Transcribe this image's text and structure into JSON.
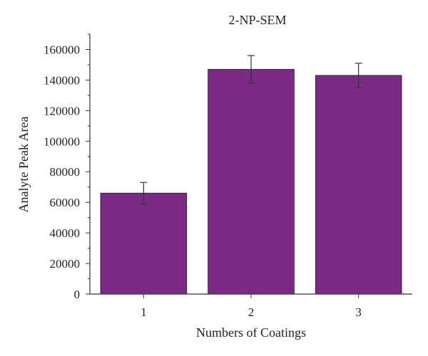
{
  "chart_data": {
    "type": "bar",
    "title": "2-NP-SEM",
    "xlabel": "Numbers of Coatings",
    "ylabel": "Analyte Peak Area",
    "categories": [
      "1",
      "2",
      "3"
    ],
    "series": [
      {
        "values": [
          66000,
          147000,
          143000
        ],
        "error": [
          7000,
          9000,
          8000
        ]
      }
    ],
    "ylim": [
      0,
      170000
    ],
    "yticks": [
      0,
      20000,
      40000,
      60000,
      80000,
      100000,
      120000,
      140000,
      160000
    ],
    "ytick_labels": [
      "0",
      "20000",
      "40000",
      "60000",
      "80000",
      "100000",
      "120000",
      "140000",
      "160000"
    ],
    "grid": false,
    "colors": {
      "bar_fill": "#7b2b86",
      "bar_edge": "#3a1b40",
      "axis": "#333333",
      "error_bar": "#333333"
    }
  }
}
